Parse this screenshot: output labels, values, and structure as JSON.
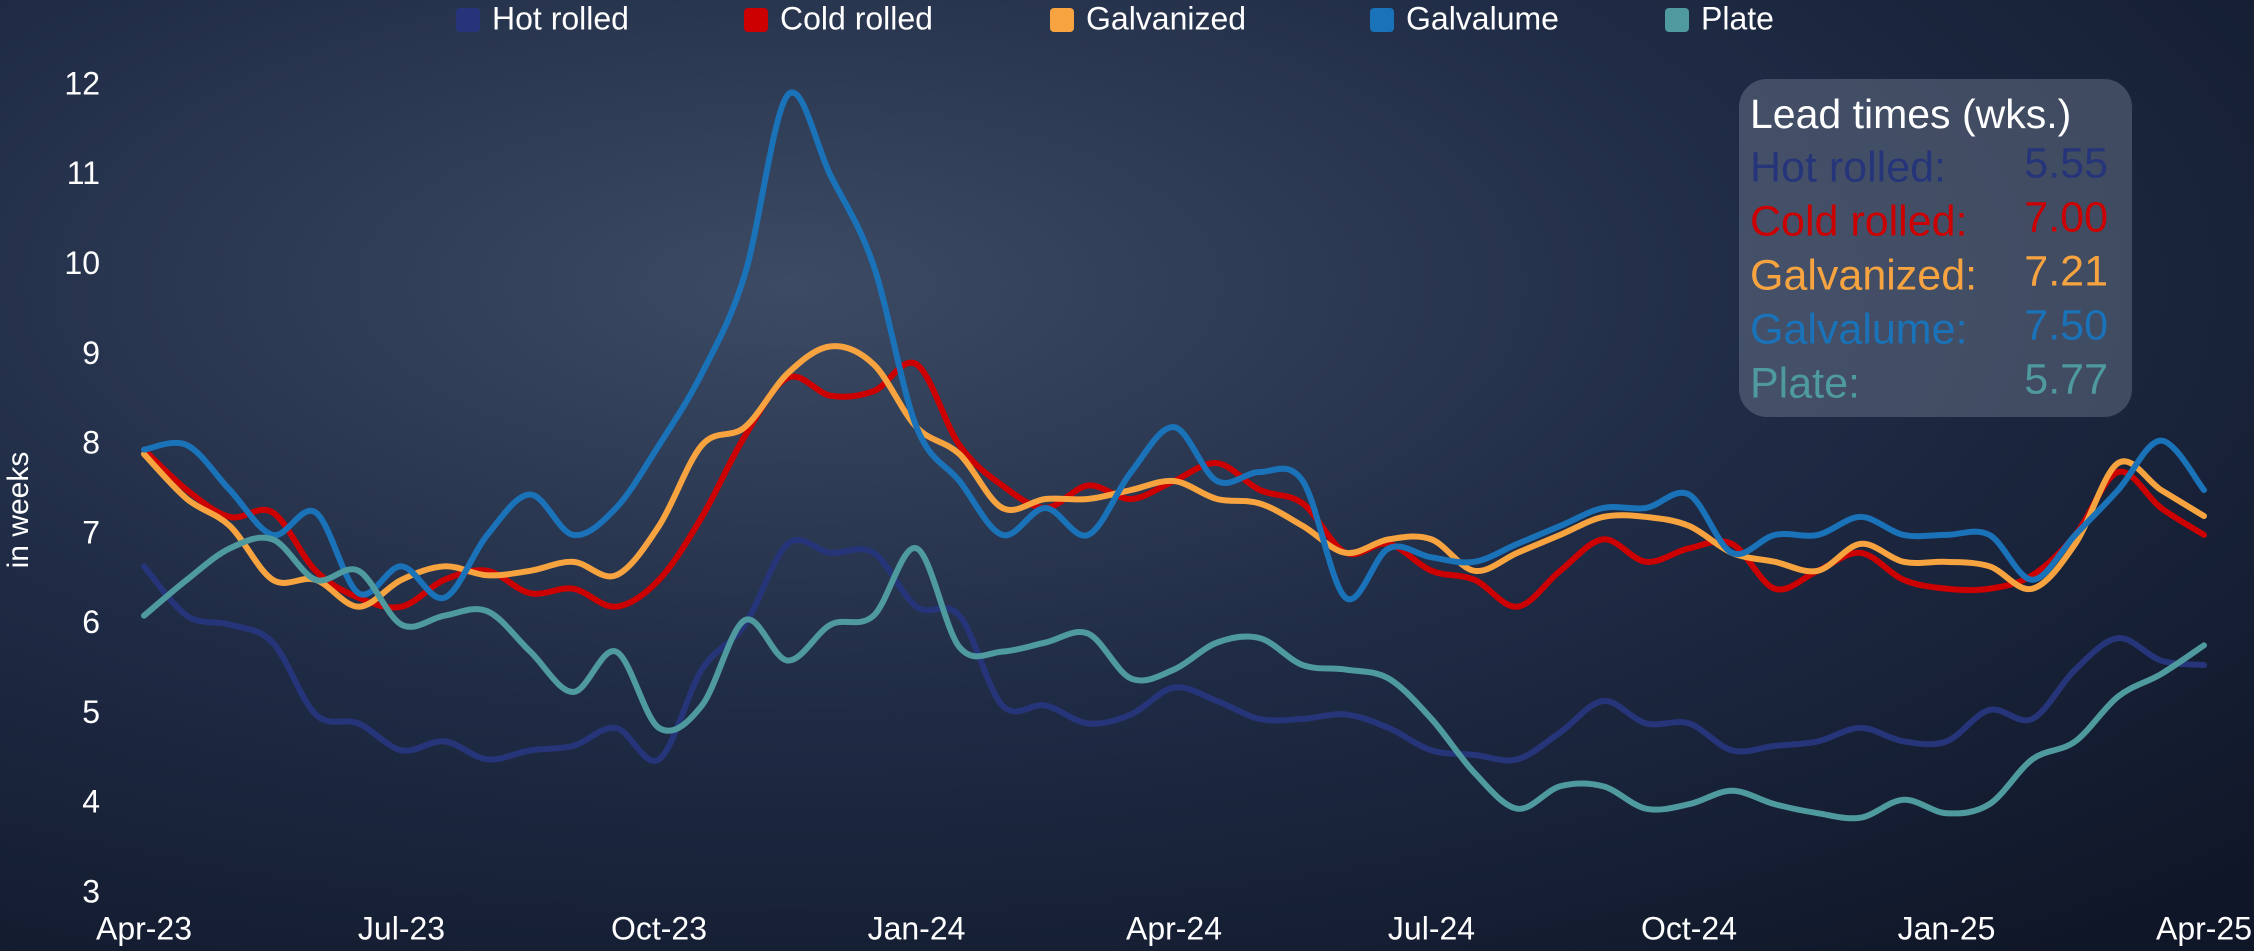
{
  "chart_data": {
    "type": "line",
    "y_label": "in weeks",
    "categories": [
      "Apr-23",
      null,
      null,
      null,
      null,
      null,
      "Jul-23",
      null,
      null,
      null,
      null,
      null,
      "Oct-23",
      null,
      null,
      null,
      null,
      null,
      "Jan-24",
      null,
      null,
      null,
      null,
      null,
      "Apr-24",
      null,
      null,
      null,
      null,
      null,
      "Jul-24",
      null,
      null,
      null,
      null,
      null,
      "Oct-24",
      null,
      null,
      null,
      null,
      null,
      "Jan-25",
      null,
      null,
      null,
      null,
      null,
      "Apr-25"
    ],
    "series": [
      {
        "name": "Hot rolled",
        "color": "#26357a",
        "values": [
          6.65,
          6.1,
          6.0,
          5.8,
          5.0,
          4.9,
          4.6,
          4.7,
          4.5,
          4.6,
          4.65,
          4.85,
          4.5,
          5.5,
          6.0,
          6.9,
          6.8,
          6.8,
          6.2,
          6.1,
          5.1,
          5.1,
          4.9,
          5.0,
          5.3,
          5.15,
          4.95,
          4.95,
          5.0,
          4.85,
          4.6,
          4.55,
          4.5,
          4.8,
          5.15,
          4.9,
          4.9,
          4.6,
          4.65,
          4.7,
          4.85,
          4.7,
          4.7,
          5.05,
          4.95,
          5.5,
          5.85,
          5.6,
          5.55
        ]
      },
      {
        "name": "Cold rolled",
        "color": "#cc0000",
        "values": [
          7.95,
          7.5,
          7.2,
          7.25,
          6.6,
          6.3,
          6.2,
          6.5,
          6.6,
          6.35,
          6.4,
          6.2,
          6.5,
          7.2,
          8.1,
          8.75,
          8.55,
          8.6,
          8.9,
          8.0,
          7.55,
          7.3,
          7.55,
          7.4,
          7.6,
          7.8,
          7.5,
          7.35,
          6.8,
          6.9,
          6.6,
          6.5,
          6.2,
          6.6,
          6.95,
          6.7,
          6.85,
          6.9,
          6.4,
          6.6,
          6.8,
          6.5,
          6.4,
          6.4,
          6.55,
          7.0,
          7.7,
          7.3,
          7.0
        ]
      },
      {
        "name": "Galvanized",
        "color": "#f7a440",
        "values": [
          7.9,
          7.4,
          7.1,
          6.5,
          6.5,
          6.2,
          6.5,
          6.65,
          6.55,
          6.6,
          6.7,
          6.55,
          7.1,
          8.0,
          8.2,
          8.8,
          9.1,
          8.9,
          8.2,
          7.9,
          7.3,
          7.4,
          7.4,
          7.5,
          7.6,
          7.4,
          7.35,
          7.1,
          6.8,
          6.95,
          6.95,
          6.6,
          6.8,
          7.0,
          7.2,
          7.2,
          7.1,
          6.8,
          6.7,
          6.6,
          6.9,
          6.7,
          6.7,
          6.65,
          6.4,
          6.9,
          7.8,
          7.5,
          7.21
        ]
      },
      {
        "name": "Galvalume",
        "color": "#1a72b8",
        "values": [
          7.95,
          8.0,
          7.5,
          7.0,
          7.25,
          6.35,
          6.65,
          6.3,
          7.0,
          7.45,
          7.0,
          7.3,
          8.0,
          8.8,
          9.9,
          11.9,
          11.0,
          10.0,
          8.2,
          7.6,
          7.0,
          7.3,
          7.0,
          7.7,
          8.2,
          7.6,
          7.7,
          7.6,
          6.3,
          6.85,
          6.75,
          6.7,
          6.9,
          7.1,
          7.3,
          7.3,
          7.45,
          6.8,
          7.0,
          7.0,
          7.2,
          7.0,
          7.0,
          7.0,
          6.5,
          7.0,
          7.5,
          8.05,
          7.5
        ]
      },
      {
        "name": "Plate",
        "color": "#4e9a9e",
        "values": [
          6.1,
          6.5,
          6.85,
          6.95,
          6.5,
          6.6,
          6.0,
          6.1,
          6.15,
          5.7,
          5.25,
          5.7,
          4.85,
          5.1,
          6.05,
          5.6,
          6.0,
          6.1,
          6.85,
          5.75,
          5.7,
          5.8,
          5.9,
          5.4,
          5.5,
          5.8,
          5.85,
          5.55,
          5.5,
          5.4,
          4.95,
          4.35,
          3.95,
          4.2,
          4.2,
          3.95,
          4.0,
          4.15,
          4.0,
          3.9,
          3.85,
          4.05,
          3.9,
          4.0,
          4.5,
          4.7,
          5.2,
          5.45,
          5.77
        ]
      }
    ],
    "ylim": [
      3,
      12
    ],
    "yticks": [
      3,
      4,
      5,
      6,
      7,
      8,
      9,
      10,
      11,
      12
    ],
    "summary": {
      "title": "Lead times (wks.)",
      "rows": [
        {
          "label": "Hot rolled:",
          "value": "5.55"
        },
        {
          "label": "Cold rolled:",
          "value": "7.00"
        },
        {
          "label": "Galvanized:",
          "value": "7.21"
        },
        {
          "label": "Galvalume:",
          "value": "7.50"
        },
        {
          "label": "Plate:",
          "value": "5.77"
        }
      ]
    }
  }
}
